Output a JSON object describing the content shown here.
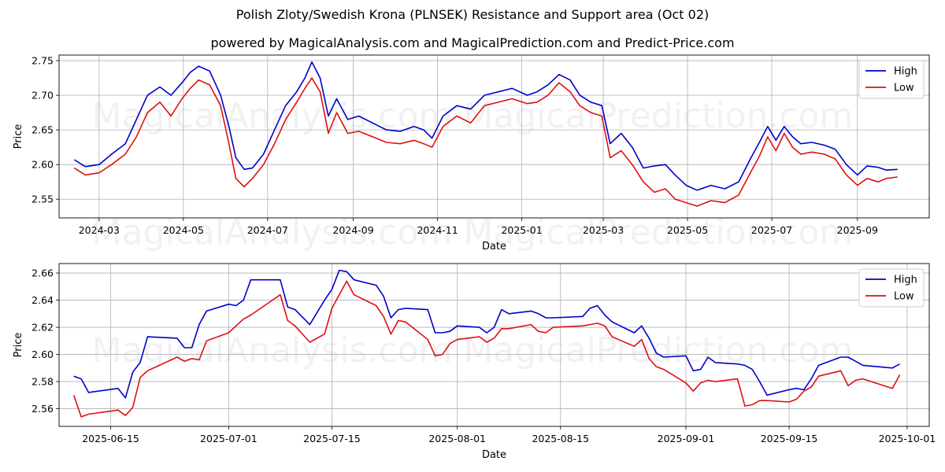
{
  "title": "Polish Zloty/Swedish Krona (PLNSEK) Resistance and Support area (Oct 02)",
  "subtitle": "powered by MagicalAnalysis.com and MagicalPrediction.com and Predict-Price.com",
  "watermark_text": "MagicalAnalysis.com    MagicalPrediction.com",
  "colors": {
    "high": "#0000cc",
    "low": "#dd1111",
    "grid": "#b0b0b0"
  },
  "chart_data": [
    {
      "type": "line",
      "xlabel": "Date",
      "ylabel": "Price",
      "xlim": [
        "2024-02-01",
        "2025-10-23"
      ],
      "ylim": [
        2.523,
        2.758
      ],
      "x_ticks": [
        "2024-03",
        "2024-05",
        "2024-07",
        "2024-09",
        "2024-11",
        "2025-01",
        "2025-03",
        "2025-05",
        "2025-07",
        "2025-09"
      ],
      "y_ticks": [
        2.55,
        2.6,
        2.65,
        2.7,
        2.75
      ],
      "y_tick_labels": [
        "2.55",
        "2.60",
        "2.65",
        "2.70",
        "2.75"
      ],
      "grid": true,
      "legend": "top-right",
      "series": [
        {
          "name": "High",
          "x": [
            "2024-02-12",
            "2024-02-20",
            "2024-03-01",
            "2024-03-10",
            "2024-03-20",
            "2024-03-28",
            "2024-04-05",
            "2024-04-14",
            "2024-04-22",
            "2024-04-30",
            "2024-05-06",
            "2024-05-12",
            "2024-05-20",
            "2024-05-28",
            "2024-06-03",
            "2024-06-08",
            "2024-06-14",
            "2024-06-20",
            "2024-06-28",
            "2024-07-06",
            "2024-07-14",
            "2024-07-22",
            "2024-07-28",
            "2024-08-02",
            "2024-08-08",
            "2024-08-14",
            "2024-08-20",
            "2024-08-28",
            "2024-09-05",
            "2024-09-15",
            "2024-09-25",
            "2024-10-05",
            "2024-10-15",
            "2024-10-22",
            "2024-10-28",
            "2024-11-05",
            "2024-11-15",
            "2024-11-25",
            "2024-12-05",
            "2024-12-15",
            "2024-12-25",
            "2025-01-05",
            "2025-01-12",
            "2025-01-20",
            "2025-01-28",
            "2025-02-05",
            "2025-02-12",
            "2025-02-20",
            "2025-02-28",
            "2025-03-06",
            "2025-03-14",
            "2025-03-22",
            "2025-03-30",
            "2025-04-07",
            "2025-04-15",
            "2025-04-22",
            "2025-04-30",
            "2025-05-08",
            "2025-05-18",
            "2025-05-28",
            "2025-06-07",
            "2025-06-16",
            "2025-06-22",
            "2025-06-28",
            "2025-07-04",
            "2025-07-10",
            "2025-07-16",
            "2025-07-22",
            "2025-07-30",
            "2025-08-08",
            "2025-08-16",
            "2025-08-24",
            "2025-09-01",
            "2025-09-08",
            "2025-09-16",
            "2025-09-22",
            "2025-09-30"
          ],
          "values": [
            2.607,
            2.597,
            2.6,
            2.615,
            2.63,
            2.665,
            2.7,
            2.712,
            2.7,
            2.718,
            2.733,
            2.742,
            2.735,
            2.7,
            2.655,
            2.61,
            2.593,
            2.595,
            2.615,
            2.65,
            2.685,
            2.705,
            2.725,
            2.748,
            2.725,
            2.67,
            2.695,
            2.665,
            2.67,
            2.66,
            2.65,
            2.648,
            2.655,
            2.65,
            2.638,
            2.67,
            2.685,
            2.68,
            2.7,
            2.705,
            2.71,
            2.7,
            2.705,
            2.715,
            2.73,
            2.722,
            2.7,
            2.69,
            2.685,
            2.63,
            2.645,
            2.625,
            2.595,
            2.598,
            2.6,
            2.585,
            2.57,
            2.563,
            2.57,
            2.565,
            2.575,
            2.61,
            2.632,
            2.655,
            2.635,
            2.655,
            2.64,
            2.63,
            2.632,
            2.628,
            2.622,
            2.6,
            2.585,
            2.598,
            2.596,
            2.592,
            2.593
          ]
        },
        {
          "name": "Low",
          "x": [
            "2024-02-12",
            "2024-02-20",
            "2024-03-01",
            "2024-03-10",
            "2024-03-20",
            "2024-03-28",
            "2024-04-05",
            "2024-04-14",
            "2024-04-22",
            "2024-04-30",
            "2024-05-06",
            "2024-05-12",
            "2024-05-20",
            "2024-05-28",
            "2024-06-03",
            "2024-06-08",
            "2024-06-14",
            "2024-06-20",
            "2024-06-28",
            "2024-07-06",
            "2024-07-14",
            "2024-07-22",
            "2024-07-28",
            "2024-08-02",
            "2024-08-08",
            "2024-08-14",
            "2024-08-20",
            "2024-08-28",
            "2024-09-05",
            "2024-09-15",
            "2024-09-25",
            "2024-10-05",
            "2024-10-15",
            "2024-10-22",
            "2024-10-28",
            "2024-11-05",
            "2024-11-15",
            "2024-11-25",
            "2024-12-05",
            "2024-12-15",
            "2024-12-25",
            "2025-01-05",
            "2025-01-12",
            "2025-01-20",
            "2025-01-28",
            "2025-02-05",
            "2025-02-12",
            "2025-02-20",
            "2025-02-28",
            "2025-03-06",
            "2025-03-14",
            "2025-03-22",
            "2025-03-30",
            "2025-04-07",
            "2025-04-15",
            "2025-04-22",
            "2025-04-30",
            "2025-05-08",
            "2025-05-18",
            "2025-05-28",
            "2025-06-07",
            "2025-06-16",
            "2025-06-22",
            "2025-06-28",
            "2025-07-04",
            "2025-07-10",
            "2025-07-16",
            "2025-07-22",
            "2025-07-30",
            "2025-08-08",
            "2025-08-16",
            "2025-08-24",
            "2025-09-01",
            "2025-09-08",
            "2025-09-16",
            "2025-09-22",
            "2025-09-30"
          ],
          "values": [
            2.595,
            2.585,
            2.588,
            2.6,
            2.615,
            2.64,
            2.675,
            2.69,
            2.67,
            2.695,
            2.71,
            2.722,
            2.715,
            2.685,
            2.63,
            2.58,
            2.568,
            2.58,
            2.6,
            2.63,
            2.665,
            2.69,
            2.71,
            2.725,
            2.705,
            2.645,
            2.675,
            2.645,
            2.648,
            2.64,
            2.632,
            2.63,
            2.635,
            2.63,
            2.625,
            2.655,
            2.67,
            2.66,
            2.685,
            2.69,
            2.695,
            2.688,
            2.69,
            2.7,
            2.718,
            2.705,
            2.685,
            2.675,
            2.67,
            2.61,
            2.62,
            2.6,
            2.575,
            2.56,
            2.565,
            2.55,
            2.545,
            2.54,
            2.548,
            2.545,
            2.556,
            2.59,
            2.612,
            2.64,
            2.62,
            2.645,
            2.625,
            2.615,
            2.618,
            2.615,
            2.608,
            2.585,
            2.57,
            2.58,
            2.575,
            2.58,
            2.582
          ]
        }
      ]
    },
    {
      "type": "line",
      "xlabel": "Date",
      "ylabel": "Price",
      "xlim": [
        "2025-06-08",
        "2025-10-04"
      ],
      "ylim": [
        2.547,
        2.667
      ],
      "x_ticks": [
        "2025-06-15",
        "2025-07-01",
        "2025-07-15",
        "2025-08-01",
        "2025-08-15",
        "2025-09-01",
        "2025-09-15",
        "2025-10-01"
      ],
      "y_ticks": [
        2.56,
        2.58,
        2.6,
        2.62,
        2.64,
        2.66
      ],
      "y_tick_labels": [
        "2.56",
        "2.58",
        "2.60",
        "2.62",
        "2.64",
        "2.66"
      ],
      "grid": true,
      "legend": "top-right",
      "series": [
        {
          "name": "High",
          "x": [
            "2025-06-10",
            "2025-06-11",
            "2025-06-12",
            "2025-06-16",
            "2025-06-17",
            "2025-06-18",
            "2025-06-19",
            "2025-06-20",
            "2025-06-24",
            "2025-06-25",
            "2025-06-26",
            "2025-06-27",
            "2025-06-28",
            "2025-07-01",
            "2025-07-02",
            "2025-07-03",
            "2025-07-04",
            "2025-07-08",
            "2025-07-09",
            "2025-07-10",
            "2025-07-12",
            "2025-07-14",
            "2025-07-15",
            "2025-07-16",
            "2025-07-17",
            "2025-07-18",
            "2025-07-21",
            "2025-07-22",
            "2025-07-23",
            "2025-07-24",
            "2025-07-25",
            "2025-07-28",
            "2025-07-29",
            "2025-07-30",
            "2025-07-31",
            "2025-08-01",
            "2025-08-04",
            "2025-08-05",
            "2025-08-06",
            "2025-08-07",
            "2025-08-08",
            "2025-08-11",
            "2025-08-12",
            "2025-08-13",
            "2025-08-14",
            "2025-08-18",
            "2025-08-19",
            "2025-08-20",
            "2025-08-21",
            "2025-08-22",
            "2025-08-25",
            "2025-08-26",
            "2025-08-27",
            "2025-08-28",
            "2025-08-29",
            "2025-09-01",
            "2025-09-02",
            "2025-09-03",
            "2025-09-04",
            "2025-09-05",
            "2025-09-08",
            "2025-09-09",
            "2025-09-10",
            "2025-09-11",
            "2025-09-12",
            "2025-09-15",
            "2025-09-16",
            "2025-09-17",
            "2025-09-18",
            "2025-09-19",
            "2025-09-22",
            "2025-09-23",
            "2025-09-24",
            "2025-09-25",
            "2025-09-29",
            "2025-09-30"
          ],
          "values": [
            2.584,
            2.582,
            2.572,
            2.575,
            2.568,
            2.587,
            2.594,
            2.613,
            2.612,
            2.605,
            2.605,
            2.622,
            2.632,
            2.637,
            2.636,
            2.64,
            2.655,
            2.655,
            2.635,
            2.633,
            2.622,
            2.64,
            2.648,
            2.662,
            2.661,
            2.655,
            2.651,
            2.643,
            2.627,
            2.633,
            2.634,
            2.633,
            2.616,
            2.616,
            2.617,
            2.621,
            2.62,
            2.616,
            2.62,
            2.633,
            2.63,
            2.632,
            2.63,
            2.627,
            2.627,
            2.628,
            2.634,
            2.636,
            2.629,
            2.624,
            2.616,
            2.621,
            2.612,
            2.601,
            2.598,
            2.599,
            2.588,
            2.589,
            2.598,
            2.594,
            2.593,
            2.592,
            2.589,
            2.58,
            2.57,
            2.574,
            2.575,
            2.574,
            2.582,
            2.592,
            2.598,
            2.598,
            2.595,
            2.592,
            2.59,
            2.593
          ]
        },
        {
          "name": "Low",
          "x": [
            "2025-06-10",
            "2025-06-11",
            "2025-06-12",
            "2025-06-16",
            "2025-06-17",
            "2025-06-18",
            "2025-06-19",
            "2025-06-20",
            "2025-06-24",
            "2025-06-25",
            "2025-06-26",
            "2025-06-27",
            "2025-06-28",
            "2025-07-01",
            "2025-07-02",
            "2025-07-03",
            "2025-07-04",
            "2025-07-08",
            "2025-07-09",
            "2025-07-10",
            "2025-07-12",
            "2025-07-14",
            "2025-07-15",
            "2025-07-16",
            "2025-07-17",
            "2025-07-18",
            "2025-07-21",
            "2025-07-22",
            "2025-07-23",
            "2025-07-24",
            "2025-07-25",
            "2025-07-28",
            "2025-07-29",
            "2025-07-30",
            "2025-07-31",
            "2025-08-01",
            "2025-08-04",
            "2025-08-05",
            "2025-08-06",
            "2025-08-07",
            "2025-08-08",
            "2025-08-11",
            "2025-08-12",
            "2025-08-13",
            "2025-08-14",
            "2025-08-18",
            "2025-08-19",
            "2025-08-20",
            "2025-08-21",
            "2025-08-22",
            "2025-08-25",
            "2025-08-26",
            "2025-08-27",
            "2025-08-28",
            "2025-08-29",
            "2025-09-01",
            "2025-09-02",
            "2025-09-03",
            "2025-09-04",
            "2025-09-05",
            "2025-09-08",
            "2025-09-09",
            "2025-09-10",
            "2025-09-11",
            "2025-09-12",
            "2025-09-15",
            "2025-09-16",
            "2025-09-17",
            "2025-09-18",
            "2025-09-19",
            "2025-09-22",
            "2025-09-23",
            "2025-09-24",
            "2025-09-25",
            "2025-09-29",
            "2025-09-30"
          ],
          "values": [
            2.57,
            2.554,
            2.556,
            2.559,
            2.555,
            2.561,
            2.583,
            2.588,
            2.598,
            2.595,
            2.597,
            2.596,
            2.61,
            2.616,
            2.621,
            2.626,
            2.629,
            2.644,
            2.625,
            2.621,
            2.609,
            2.615,
            2.634,
            2.644,
            2.654,
            2.644,
            2.636,
            2.628,
            2.615,
            2.625,
            2.624,
            2.611,
            2.599,
            2.6,
            2.608,
            2.611,
            2.613,
            2.609,
            2.612,
            2.619,
            2.619,
            2.622,
            2.617,
            2.616,
            2.62,
            2.621,
            2.622,
            2.623,
            2.621,
            2.613,
            2.606,
            2.611,
            2.597,
            2.591,
            2.589,
            2.579,
            2.573,
            2.579,
            2.581,
            2.58,
            2.582,
            2.562,
            2.563,
            2.566,
            2.566,
            2.565,
            2.567,
            2.573,
            2.576,
            2.584,
            2.588,
            2.577,
            2.581,
            2.582,
            2.575,
            2.585
          ]
        }
      ]
    }
  ]
}
